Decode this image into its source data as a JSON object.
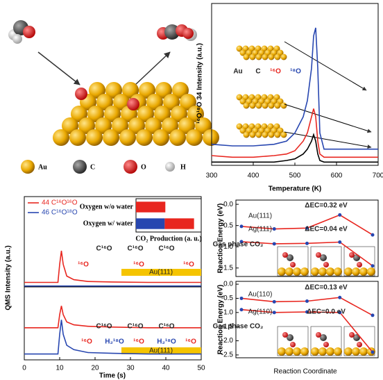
{
  "schematic": {
    "labels": [
      "Au",
      "C",
      "O",
      "H"
    ]
  },
  "chart_data": [
    {
      "type": "line",
      "xlabel": "Temperature (K)",
      "ylabel": "¹⁶O¹⁸O 34 Intensity (a.u.)",
      "x": [
        300,
        350,
        400,
        450,
        480,
        500,
        520,
        530,
        540,
        545,
        550,
        555,
        560,
        570,
        600,
        650,
        700
      ],
      "xlim": [
        300,
        700
      ],
      "xticks": [
        300,
        400,
        500,
        600,
        700
      ],
      "ylim": [
        0,
        1
      ],
      "series": [
        {
          "color": "#2746b0",
          "values": [
            0.13,
            0.12,
            0.12,
            0.13,
            0.15,
            0.2,
            0.3,
            0.4,
            0.6,
            0.8,
            0.85,
            0.6,
            0.2,
            0.1,
            0.1,
            0.1,
            0.1
          ]
        },
        {
          "color": "#e8261f",
          "values": [
            0.06,
            0.05,
            0.05,
            0.06,
            0.07,
            0.09,
            0.15,
            0.2,
            0.3,
            0.35,
            0.3,
            0.15,
            0.07,
            0.05,
            0.05,
            0.05,
            0.05
          ]
        },
        {
          "color": "#000000",
          "values": [
            0.02,
            0.02,
            0.02,
            0.02,
            0.03,
            0.04,
            0.07,
            0.1,
            0.15,
            0.19,
            0.15,
            0.07,
            0.03,
            0.02,
            0.02,
            0.02,
            0.02
          ]
        }
      ],
      "annotations": [
        "Au",
        "C",
        "¹⁶O",
        "¹⁸O"
      ]
    },
    {
      "type": "line",
      "ylabel": "QMS Intensity (a.u.)",
      "x": [
        0,
        9.5,
        10,
        10.5,
        11,
        12,
        14,
        18,
        25,
        35,
        50
      ],
      "xlim": [
        0,
        50
      ],
      "ylim": [
        0,
        1
      ],
      "series": [
        {
          "name": "44 C¹⁶O¹⁶O",
          "color": "#e8261f",
          "values": [
            0.05,
            0.05,
            0.25,
            0.4,
            0.25,
            0.12,
            0.08,
            0.06,
            0.055,
            0.05,
            0.05
          ]
        },
        {
          "name": "46 C¹⁶O¹⁸O",
          "color": "#2746b0",
          "values": [
            0.01,
            0.01,
            0.01,
            0.01,
            0.01,
            0.01,
            0.01,
            0.01,
            0.01,
            0.01,
            0.01
          ]
        }
      ],
      "annotations": [
        "C¹⁶O",
        "C¹⁶O",
        "C¹⁶O",
        "¹⁶O",
        "¹⁶O",
        "¹⁶O",
        "Au(111)"
      ]
    },
    {
      "type": "line",
      "xlabel": "Time (s)",
      "x": [
        0,
        9.5,
        10,
        10.5,
        11,
        12,
        14,
        18,
        25,
        35,
        50
      ],
      "xlim": [
        0,
        50
      ],
      "xticks": [
        0,
        10,
        20,
        30,
        40,
        50
      ],
      "ylim": [
        0,
        1
      ],
      "series": [
        {
          "color": "#e8261f",
          "values": [
            0.44,
            0.44,
            0.62,
            0.74,
            0.62,
            0.52,
            0.48,
            0.46,
            0.45,
            0.44,
            0.44
          ]
        },
        {
          "color": "#2746b0",
          "values": [
            0.08,
            0.08,
            0.35,
            0.55,
            0.35,
            0.2,
            0.14,
            0.1,
            0.09,
            0.08,
            0.08
          ]
        }
      ],
      "annotations": [
        "C¹⁶O",
        "C¹⁶O",
        "C¹⁶O",
        "¹⁶O",
        "H₂¹⁸O",
        "¹⁶O",
        "H₂¹⁸O",
        "¹⁶O",
        "Au(111)"
      ]
    },
    {
      "type": "hbar",
      "title": "CO₂ Production (a. u.)",
      "categories": [
        "Oxygen w/o water",
        "Oxygen w/ water"
      ],
      "xlim": [
        0,
        100
      ],
      "series": [
        {
          "color": "#2746b0",
          "values": [
            null,
            44
          ]
        },
        {
          "color": "#e8261f",
          "values": [
            45,
            45
          ]
        }
      ]
    },
    {
      "type": "line",
      "ylabel": "Reaction Energy (eV)",
      "categories": [
        null,
        null,
        null,
        null,
        null
      ],
      "ylim": [
        -1.7,
        0.1
      ],
      "yticks": [
        {
          "value": 0,
          "label": "0.0"
        },
        -0.5,
        {
          "value": -1,
          "label": "-1.0"
        },
        -1.5
      ],
      "series": [
        {
          "color": "#e8261f",
          "values": [
            -0.52,
            -0.58,
            -0.56,
            -0.25,
            -0.72
          ]
        },
        {
          "color": "#e8261f",
          "values": [
            -0.88,
            -0.93,
            -0.92,
            -0.89,
            -1.45
          ]
        }
      ],
      "annotations": [
        "Au(111)",
        "Ag(111)",
        "ΔEC=0.32 eV",
        "ΔEC=0.04 eV",
        "Gas phase CO₂"
      ]
    },
    {
      "type": "line",
      "ylabel": "Reaction Energy (eV)",
      "xlabel": "Reaction Coordinate",
      "categories": [
        null,
        null,
        null,
        null,
        null
      ],
      "ylim": [
        -2.6,
        0.1
      ],
      "yticks": [
        {
          "value": 0,
          "label": "0.0"
        },
        -0.5,
        {
          "value": -1,
          "label": "-1.0"
        },
        -1.5,
        {
          "value": -2,
          "label": "-2.0"
        },
        -2.5
      ],
      "series": [
        {
          "color": "#e8261f",
          "values": [
            -0.5,
            -0.62,
            -0.6,
            -0.47,
            -1.1
          ]
        },
        {
          "color": "#e8261f",
          "values": [
            -0.9,
            -1.0,
            -0.98,
            -1.0,
            -2.4
          ]
        }
      ],
      "annotations": [
        "Au(110)",
        "Ag(110)",
        "ΔEC=0.13 eV",
        "ΔEC=0.0 eV",
        "Gas phase CO₂"
      ]
    }
  ]
}
